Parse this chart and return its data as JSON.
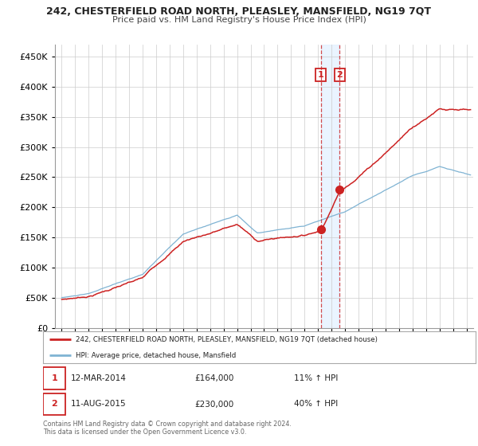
{
  "title": "242, CHESTERFIELD ROAD NORTH, PLEASLEY, MANSFIELD, NG19 7QT",
  "subtitle": "Price paid vs. HM Land Registry's House Price Index (HPI)",
  "legend_line1": "242, CHESTERFIELD ROAD NORTH, PLEASLEY, MANSFIELD, NG19 7QT (detached house)",
  "legend_line2": "HPI: Average price, detached house, Mansfield",
  "sale1_date": "12-MAR-2014",
  "sale1_price": "£164,000",
  "sale1_hpi": "11% ↑ HPI",
  "sale2_date": "11-AUG-2015",
  "sale2_price": "£230,000",
  "sale2_hpi": "40% ↑ HPI",
  "footer": "Contains HM Land Registry data © Crown copyright and database right 2024.\nThis data is licensed under the Open Government Licence v3.0.",
  "red_color": "#cc2222",
  "blue_color": "#7fb3d3",
  "vline1_x": 2014.2,
  "vline2_x": 2015.6,
  "sale1_price_val": 164000,
  "sale2_price_val": 230000,
  "ylim": [
    0,
    470000
  ],
  "xlim": [
    1994.5,
    2025.5
  ],
  "yticks": [
    0,
    50000,
    100000,
    150000,
    200000,
    250000,
    300000,
    350000,
    400000,
    450000
  ],
  "background_color": "#ffffff",
  "shade_color": "#ddeeff"
}
